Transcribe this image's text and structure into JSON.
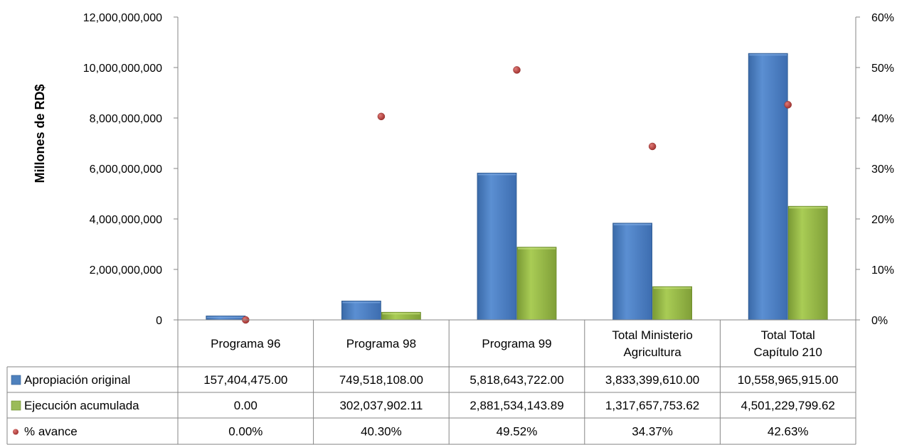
{
  "chart_data": {
    "type": "bar",
    "ylabel": "Millones de RD$",
    "categories": [
      [
        "Programa 96"
      ],
      [
        "Programa 98"
      ],
      [
        "Programa 99"
      ],
      [
        "Total Ministerio",
        "Agricultura"
      ],
      [
        "Total Total",
        "Capítulo 210"
      ]
    ],
    "y_left": {
      "min": 0,
      "max": 12000000000,
      "step": 2000000000,
      "ticks": [
        "0",
        "2,000,000,000",
        "4,000,000,000",
        "6,000,000,000",
        "8,000,000,000",
        "10,000,000,000",
        "12,000,000,000"
      ]
    },
    "y_right": {
      "min": 0,
      "max": 60,
      "step": 10,
      "ticks": [
        "0%",
        "10%",
        "20%",
        "30%",
        "40%",
        "50%",
        "60%"
      ]
    },
    "series": [
      {
        "name": "Apropiación original",
        "type": "bar",
        "axis": "left",
        "color": "#4f81bd",
        "values": [
          157404475.0,
          749518108.0,
          5818643722.0,
          3833399610.0,
          10558965915.0
        ],
        "labels": [
          "157,404,475.00",
          "749,518,108.00",
          "5,818,643,722.00",
          "3,833,399,610.00",
          "10,558,965,915.00"
        ]
      },
      {
        "name": "Ejecución acumulada",
        "type": "bar",
        "axis": "left",
        "color": "#9bbb59",
        "values": [
          0.0,
          302037902.11,
          2881534143.89,
          1317657753.62,
          4501229799.62
        ],
        "labels": [
          "0.00",
          "302,037,902.11",
          "2,881,534,143.89",
          "1,317,657,753.62",
          "4,501,229,799.62"
        ]
      },
      {
        "name": "% avance",
        "type": "scatter",
        "axis": "right",
        "color": "#c0504d",
        "values": [
          0.0,
          40.3,
          49.52,
          34.37,
          42.63
        ],
        "labels": [
          "0.00%",
          "40.30%",
          "49.52%",
          "34.37%",
          "42.63%"
        ]
      }
    ],
    "legend": "data table below chart",
    "grid": false
  }
}
